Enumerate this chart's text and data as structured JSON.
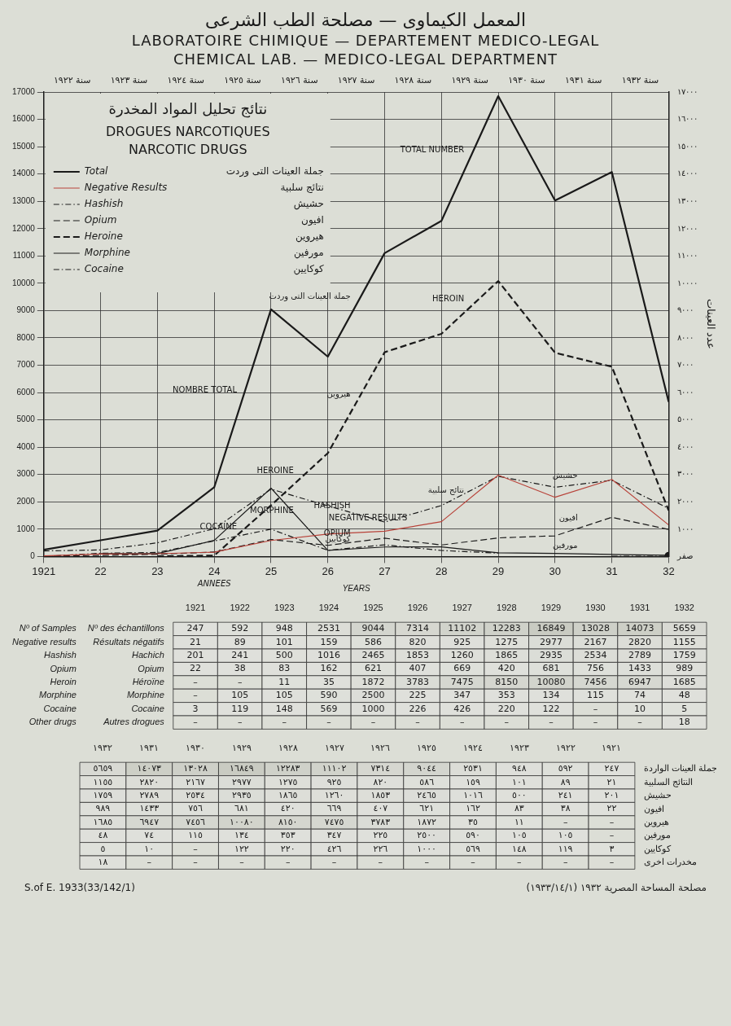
{
  "chart_data": [
    {
      "type": "line",
      "title": "المعمل الكيماوى — مصلحة الطب الشرعى",
      "subtitle": "LABORATOIRE CHIMIQUE — DEPARTEMENT MEDICO-LEGAL",
      "xlabel": "YEARS",
      "y2label": "عدد العينات",
      "x": [
        1921,
        1922,
        1923,
        1924,
        1925,
        1926,
        1927,
        1928,
        1929,
        1930,
        1931,
        1932
      ],
      "xlim": [
        1921,
        1932
      ],
      "xticks": [
        {
          "value": 1921,
          "label": "1921"
        },
        {
          "value": 1922,
          "label": "22"
        },
        {
          "value": 1923,
          "label": "23"
        },
        {
          "value": 1924,
          "label": "24"
        },
        {
          "value": 1925,
          "label": "25"
        },
        {
          "value": 1926,
          "label": "26"
        },
        {
          "value": 1927,
          "label": "27"
        },
        {
          "value": 1928,
          "label": "28"
        },
        {
          "value": 1929,
          "label": "29"
        },
        {
          "value": 1930,
          "label": "30"
        },
        {
          "value": 1931,
          "label": "31"
        },
        {
          "value": 1932,
          "label": "32"
        }
      ],
      "ylim": [
        0,
        17000
      ],
      "yticks": [
        0,
        1000,
        2000,
        3000,
        4000,
        5000,
        6000,
        7000,
        8000,
        9000,
        10000,
        11000,
        12000,
        13000,
        14000,
        15000,
        16000,
        17000
      ],
      "y2lim": [
        0,
        17000
      ],
      "y2ticks": [
        {
          "value": 0,
          "label": "صفر"
        },
        {
          "value": 1000,
          "label": "١٠٠٠"
        },
        {
          "value": 2000,
          "label": "٢٠٠٠"
        },
        {
          "value": 3000,
          "label": "٣٠٠٠"
        },
        {
          "value": 4000,
          "label": "٤٠٠٠"
        },
        {
          "value": 5000,
          "label": "٥٠٠٠"
        },
        {
          "value": 6000,
          "label": "٦٠٠٠"
        },
        {
          "value": 7000,
          "label": "٧٠٠٠"
        },
        {
          "value": 8000,
          "label": "٨٠٠٠"
        },
        {
          "value": 9000,
          "label": "٩٠٠٠"
        },
        {
          "value": 10000,
          "label": "١٠٠٠٠"
        },
        {
          "value": 11000,
          "label": "١١٠٠٠"
        },
        {
          "value": 12000,
          "label": "١٢٠٠٠"
        },
        {
          "value": 13000,
          "label": "١٣٠٠٠"
        },
        {
          "value": 14000,
          "label": "١٤٠٠٠"
        },
        {
          "value": 15000,
          "label": "١٥٠٠٠"
        },
        {
          "value": 16000,
          "label": "١٦٠٠٠"
        },
        {
          "value": 17000,
          "label": "١٧٠٠٠"
        }
      ],
      "grid": true,
      "legend": "top left",
      "marker": "none",
      "series": [
        {
          "name": "Total",
          "color": "#1a1a1a",
          "line_style": "solid",
          "values": [
            247,
            592,
            948,
            2531,
            9044,
            7314,
            11102,
            12283,
            16849,
            13028,
            14073,
            5659
          ]
        },
        {
          "name": "Negative Results",
          "color": "#b8433a",
          "line_style": "solid",
          "values": [
            21,
            89,
            101,
            159,
            586,
            820,
            925,
            1275,
            2977,
            2167,
            2820,
            1155
          ]
        },
        {
          "name": "Hashish",
          "color": "#1a1a1a",
          "line_style": "dotted",
          "values": [
            201,
            241,
            500,
            1016,
            2465,
            1853,
            1260,
            1865,
            2935,
            2534,
            2789,
            1759
          ]
        },
        {
          "name": "Opium",
          "color": "#1a1a1a",
          "line_style": "dashed",
          "values": [
            22,
            38,
            83,
            162,
            621,
            407,
            669,
            420,
            681,
            756,
            1433,
            989
          ]
        },
        {
          "name": "Heroine",
          "color": "#1a1a1a",
          "line_style": "dashed",
          "values": [
            null,
            null,
            11,
            35,
            1872,
            3783,
            7475,
            8150,
            10080,
            7456,
            6947,
            1685
          ]
        },
        {
          "name": "Morphine",
          "color": "#1a1a1a",
          "line_style": "solid",
          "values": [
            null,
            105,
            105,
            590,
            2500,
            225,
            347,
            353,
            134,
            115,
            74,
            48
          ]
        },
        {
          "name": "Cocaine",
          "color": "#1a1a1a",
          "line_style": "dotted",
          "values": [
            3,
            119,
            148,
            569,
            1000,
            226,
            426,
            220,
            122,
            null,
            10,
            5
          ]
        },
        {
          "color": "#1a1a1a",
          "line_style": "solid",
          "marker": "circle",
          "values": [
            null,
            null,
            null,
            null,
            null,
            null,
            null,
            null,
            null,
            null,
            null,
            18
          ]
        }
      ],
      "annotations": [
        "CHEMICAL LAB. — MEDICO-LEGAL DEPARTMENT",
        "نتائج تحليل المواد المخدرة",
        "DROGUES NARCOTIQUES",
        "NARCOTIC DRUGS",
        "جملة العينات التى وردت",
        "نتائج سلبية",
        "حشيش",
        "افيون",
        "هيروين",
        "مورفين",
        "كوكايين",
        "ANNEES",
        "سنة ١٩٢٢",
        "سنة ١٩٢٣",
        "سنة ١٩٢٤",
        "سنة ١٩٢٥",
        "سنة ١٩٢٦",
        "سنة ١٩٢٧",
        "سنة ١٩٢٨",
        "سنة ١٩٢٩",
        "سنة ١٩٣٠",
        "سنة ١٩٣١",
        "سنة ١٩٣٢",
        "مصلحة المساحة المصرية ١٩٣٢ (١٩٣٣/١٤/١)",
        "S.of E. 1933(33/142/1)",
        {
          "text": "NOMBRE TOTAL",
          "x": 1924.5,
          "y": 5788
        },
        {
          "text": "TOTAL NUMBER",
          "x": 1928.5,
          "y": 14566
        },
        {
          "text": "جملة العينات التى وردت",
          "x": 1926.5,
          "y": 9208
        },
        {
          "text": "HEROINE",
          "x": 1925.5,
          "y": 2828
        },
        {
          "text": "HEROIN",
          "x": 1928.5,
          "y": 9115
        },
        {
          "text": "هيروين",
          "x": 1926.5,
          "y": 5629
        },
        {
          "text": "HASHISH",
          "x": 1926.5,
          "y": 1557
        },
        {
          "text": "COCAINE",
          "x": 1924.5,
          "y": 785
        },
        {
          "text": "MORPHINE",
          "x": 1925.5,
          "y": 1363
        },
        {
          "text": "NEGATIVE RESULTS",
          "x": 1927.5,
          "y": 1100
        },
        {
          "text": "OPIUM",
          "x": 1926.5,
          "y": 538
        },
        {
          "text": "كوكايين",
          "x": 1926.5,
          "y": 326
        },
        {
          "text": "نتائج سلبية",
          "x": 1928.5,
          "y": 2126
        },
        {
          "text": "حشيش",
          "x": 1930.5,
          "y": 2662
        },
        {
          "text": "افيون",
          "x": 1930.5,
          "y": 1095
        },
        {
          "text": "مورفين",
          "x": 1930.5,
          "y": 95
        }
      ]
    },
    {
      "type": "heatmap",
      "categories": [
        "1921",
        "1922",
        "1923",
        "1924",
        "1925",
        "1926",
        "1927",
        "1928",
        "1929",
        "1930",
        "1931",
        "1932"
      ],
      "y_categories": [
        "Nº des échantillons",
        "Résultats négatifs",
        "Hachich",
        "Opium",
        "Héroïne",
        "Morphine",
        "Cocaine",
        "Autres drogues"
      ],
      "y2_categories": [
        "Nº of Samples",
        "Negative results",
        "Hashish",
        "Opium",
        "Heroin",
        "Morphine",
        "Cocaine",
        "Other drugs"
      ],
      "cells": [
        [
          247,
          592,
          948,
          2531,
          9044,
          7314,
          11102,
          12283,
          16849,
          13028,
          14073,
          5659
        ],
        [
          21,
          89,
          101,
          159,
          586,
          820,
          925,
          1275,
          2977,
          2167,
          2820,
          1155
        ],
        [
          201,
          241,
          500,
          1016,
          2465,
          1853,
          1260,
          1865,
          2935,
          2534,
          2789,
          1759
        ],
        [
          22,
          38,
          83,
          162,
          621,
          407,
          669,
          420,
          681,
          756,
          1433,
          989
        ],
        [
          null,
          null,
          11,
          35,
          1872,
          3783,
          7475,
          8150,
          10080,
          7456,
          6947,
          1685
        ],
        [
          null,
          105,
          105,
          590,
          2500,
          225,
          347,
          353,
          134,
          115,
          74,
          48
        ],
        [
          3,
          119,
          148,
          569,
          1000,
          226,
          426,
          220,
          122,
          null,
          10,
          5
        ],
        [
          null,
          null,
          null,
          null,
          null,
          null,
          null,
          null,
          null,
          null,
          null,
          18
        ]
      ],
      "cell_labels": [
        [
          "247",
          "592",
          "948",
          "2531",
          "9044",
          "7314",
          "11102",
          "12283",
          "16849",
          "13028",
          "14073",
          "5659"
        ],
        [
          "21",
          "89",
          "101",
          "159",
          "586",
          "820",
          "925",
          "1275",
          "2977",
          "2167",
          "2820",
          "1155"
        ],
        [
          "201",
          "241",
          "500",
          "1016",
          "2465",
          "1853",
          "1260",
          "1865",
          "2935",
          "2534",
          "2789",
          "1759"
        ],
        [
          "22",
          "38",
          "83",
          "162",
          "621",
          "407",
          "669",
          "420",
          "681",
          "756",
          "1433",
          "989"
        ],
        [
          "–",
          "–",
          "11",
          "35",
          "1872",
          "3783",
          "7475",
          "8150",
          "10080",
          "7456",
          "6947",
          "1685"
        ],
        [
          "–",
          "105",
          "105",
          "590",
          "2500",
          "225",
          "347",
          "353",
          "134",
          "115",
          "74",
          "48"
        ],
        [
          "3",
          "119",
          "148",
          "569",
          "1000",
          "226",
          "426",
          "220",
          "122",
          "–",
          "10",
          "5"
        ],
        [
          "–",
          "–",
          "–",
          "–",
          "–",
          "–",
          "–",
          "–",
          "–",
          "–",
          "–",
          "18"
        ]
      ]
    },
    {
      "type": "heatmap",
      "categories": [
        "١٩٣٢",
        "١٩٣١",
        "١٩٣٠",
        "١٩٢٩",
        "١٩٢٨",
        "١٩٢٧",
        "١٩٢٦",
        "١٩٢٥",
        "١٩٢٤",
        "١٩٢٣",
        "١٩٢٢",
        "١٩٢١"
      ],
      "y_categories": [
        "جملة العينات الواردة",
        "النتائج السلبية",
        "حشيش",
        "افيون",
        "هيروين",
        "مورفين",
        "كوكايين",
        "مخدرات اخرى"
      ],
      "cells": [
        [
          5659,
          14073,
          13028,
          16849,
          12283,
          11102,
          7314,
          9044,
          2531,
          948,
          592,
          247
        ],
        [
          1155,
          2820,
          2167,
          2977,
          1275,
          925,
          820,
          586,
          159,
          101,
          89,
          21
        ],
        [
          1759,
          2789,
          2534,
          2935,
          1865,
          1260,
          1853,
          2465,
          1016,
          500,
          241,
          201
        ],
        [
          989,
          1433,
          756,
          681,
          420,
          669,
          407,
          621,
          162,
          83,
          38,
          22
        ],
        [
          1685,
          6947,
          7456,
          10080,
          8150,
          7475,
          3783,
          1872,
          35,
          11,
          null,
          null
        ],
        [
          48,
          74,
          115,
          134,
          353,
          347,
          225,
          2500,
          590,
          105,
          105,
          null
        ],
        [
          5,
          10,
          null,
          122,
          220,
          426,
          226,
          1000,
          569,
          148,
          119,
          3
        ],
        [
          18,
          null,
          null,
          null,
          null,
          null,
          null,
          null,
          null,
          null,
          null,
          null
        ]
      ],
      "cell_labels": [
        [
          "٥٦٥٩",
          "١٤٠٧٣",
          "١٣٠٢٨",
          "١٦٨٤٩",
          "١٢٢٨٣",
          "١١١٠٢",
          "٧٣١٤",
          "٩٠٤٤",
          "٢٥٣١",
          "٩٤٨",
          "٥٩٢",
          "٢٤٧"
        ],
        [
          "١١٥٥",
          "٢٨٢٠",
          "٢١٦٧",
          "٢٩٧٧",
          "١٢٧٥",
          "٩٢٥",
          "٨٢٠",
          "٥٨٦",
          "١٥٩",
          "١٠١",
          "٨٩",
          "٢١"
        ],
        [
          "١٧٥٩",
          "٢٧٨٩",
          "٢٥٣٤",
          "٢٩٣٥",
          "١٨٦٥",
          "١٢٦٠",
          "١٨٥٣",
          "٢٤٦٥",
          "١٠١٦",
          "٥٠٠",
          "٢٤١",
          "٢٠١"
        ],
        [
          "٩٨٩",
          "١٤٣٣",
          "٧٥٦",
          "٦٨١",
          "٤٢٠",
          "٦٦٩",
          "٤٠٧",
          "٦٢١",
          "١٦٢",
          "٨٣",
          "٣٨",
          "٢٢"
        ],
        [
          "١٦٨٥",
          "٦٩٤٧",
          "٧٤٥٦",
          "١٠٠٨٠",
          "٨١٥٠",
          "٧٤٧٥",
          "٣٧٨٣",
          "١٨٧٢",
          "٣٥",
          "١١",
          "–",
          "–"
        ],
        [
          "٤٨",
          "٧٤",
          "١١٥",
          "١٣٤",
          "٣٥٣",
          "٣٤٧",
          "٢٢٥",
          "٢٥٠٠",
          "٥٩٠",
          "١٠٥",
          "١٠٥",
          "–"
        ],
        [
          "٥",
          "١٠",
          "–",
          "١٢٢",
          "٢٢٠",
          "٤٢٦",
          "٢٢٦",
          "١٠٠٠",
          "٥٦٩",
          "١٤٨",
          "١١٩",
          "٣"
        ],
        [
          "١٨",
          "–",
          "–",
          "–",
          "–",
          "–",
          "–",
          "–",
          "–",
          "–",
          "–",
          "–"
        ]
      ]
    }
  ]
}
